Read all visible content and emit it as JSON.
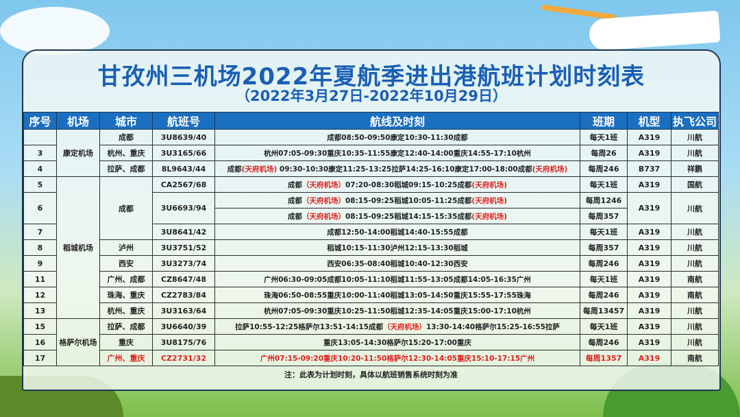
{
  "title": "甘孜州三机场2022年夏航季进出港航班计划时刻表",
  "subtitle": "（2022年3月27日-2022年10月29日）",
  "headers": [
    "序号",
    "机场",
    "城市",
    "航班号",
    "航线及时刻",
    "班期",
    "机型",
    "执飞公司"
  ],
  "airports": [
    {
      "name": "康定机场",
      "cities": [
        {
          "city": "成都",
          "flights": [
            {
              "no": "",
              "flight": "3U8639/40",
              "aircraft": "A319",
              "airline": "川航",
              "lines": [
                {
                  "route": [
                    {
                      "t": "成都08:50-09:50康定10:30-11:30成都"
                    }
                  ],
                  "schedule": "每天1班"
                }
              ]
            }
          ]
        },
        {
          "city": "杭州、重庆",
          "flights": [
            {
              "no": "3",
              "flight": "3U3165/66",
              "aircraft": "A319",
              "airline": "川航",
              "lines": [
                {
                  "route": [
                    {
                      "t": "杭州07:05-09:30重庆10:35-11:55康定12:40-14:00重庆14:55-17:10杭州"
                    }
                  ],
                  "schedule": "每周26"
                }
              ]
            }
          ]
        },
        {
          "city": "拉萨、成都",
          "flights": [
            {
              "no": "4",
              "flight": "8L9643/44",
              "aircraft": "B737",
              "airline": "祥鹏",
              "lines": [
                {
                  "route": [
                    {
                      "t": "成都"
                    },
                    {
                      "t": "(天府机场)",
                      "red": true
                    },
                    {
                      "t": " 09:30-10:30康定11:25-13:25拉萨14:25-16:10康定17:00-18:00成都"
                    },
                    {
                      "t": "(天府机场)",
                      "red": true
                    }
                  ],
                  "schedule": "每周246"
                }
              ]
            }
          ]
        }
      ]
    },
    {
      "name": "稻城机场",
      "cities": [
        {
          "city": "成都",
          "flights": [
            {
              "no": "5",
              "flight": "CA2567/68",
              "aircraft": "A319",
              "airline": "国航",
              "lines": [
                {
                  "route": [
                    {
                      "t": "成都"
                    },
                    {
                      "t": "（天府机场）",
                      "red": true
                    },
                    {
                      "t": "07:20-08:30稻城09:15-10:25成都"
                    },
                    {
                      "t": "(天府机场)",
                      "red": true
                    }
                  ],
                  "schedule": "每天1班"
                }
              ]
            },
            {
              "no": "6",
              "flight": "3U6693/94",
              "aircraft": "A319",
              "airline": "川航",
              "lines": [
                {
                  "route": [
                    {
                      "t": "成都"
                    },
                    {
                      "t": "（天府机场）",
                      "red": true
                    },
                    {
                      "t": "08:15-09:25稻城10:05-11:25成都"
                    },
                    {
                      "t": "(天府机场)",
                      "red": true
                    }
                  ],
                  "schedule": "每周1246"
                },
                {
                  "route": [
                    {
                      "t": "成都"
                    },
                    {
                      "t": "（天府机场）",
                      "red": true
                    },
                    {
                      "t": "08:15-09:25稻城14:15-15:35成都"
                    },
                    {
                      "t": "(天府机场)",
                      "red": true
                    }
                  ],
                  "schedule": "每周357"
                }
              ]
            },
            {
              "no": "7",
              "flight": "3U8641/42",
              "aircraft": "A319",
              "airline": "川航",
              "lines": [
                {
                  "route": [
                    {
                      "t": "成都12:50-14:00稻城14:40-15:55成都"
                    }
                  ],
                  "schedule": "每天1班"
                }
              ]
            }
          ]
        },
        {
          "city": "泸州",
          "flights": [
            {
              "no": "8",
              "flight": "3U3751/52",
              "aircraft": "A319",
              "airline": "川航",
              "lines": [
                {
                  "route": [
                    {
                      "t": "稻城10:15-11:30泸州12:15-13:30稻城"
                    }
                  ],
                  "schedule": "每周357"
                }
              ]
            }
          ]
        },
        {
          "city": "西安",
          "flights": [
            {
              "no": "9",
              "flight": "3U3273/74",
              "aircraft": "A319",
              "airline": "川航",
              "lines": [
                {
                  "route": [
                    {
                      "t": "西安06:35-08:40稻城10:40-12:30西安"
                    }
                  ],
                  "schedule": "每周246"
                }
              ]
            }
          ]
        },
        {
          "city": "广州、成都",
          "flights": [
            {
              "no": "11",
              "flight": "CZ8647/48",
              "aircraft": "A319",
              "airline": "南航",
              "lines": [
                {
                  "route": [
                    {
                      "t": "广州06:30-09:05成都10:05-11:10稻城11:55-13:05成都14:05-16:35广州"
                    }
                  ],
                  "schedule": "每天1班"
                }
              ]
            }
          ]
        },
        {
          "city": "珠海、重庆",
          "flights": [
            {
              "no": "12",
              "flight": "CZ2783/84",
              "aircraft": "A319",
              "airline": "南航",
              "lines": [
                {
                  "route": [
                    {
                      "t": "珠海06:50-08:55重庆10:00-11:40稻城13:05-14:50重庆15:55-17:55珠海"
                    }
                  ],
                  "schedule": "每周246"
                }
              ]
            }
          ]
        },
        {
          "city": "杭州、重庆",
          "flights": [
            {
              "no": "13",
              "flight": "3U3163/64",
              "aircraft": "A319",
              "airline": "川航",
              "lines": [
                {
                  "route": [
                    {
                      "t": "杭州07:05-09:30重庆10:25-11:50稻城12:35-14:05重庆15:00-17:10杭州"
                    }
                  ],
                  "schedule": "每周13457"
                }
              ]
            }
          ]
        }
      ]
    },
    {
      "name": "格萨尔机场",
      "cities": [
        {
          "city": "拉萨、成都",
          "flights": [
            {
              "no": "15",
              "flight": "3U6640/39",
              "aircraft": "A319",
              "airline": "川航",
              "lines": [
                {
                  "route": [
                    {
                      "t": "拉萨10:55-12:25格萨尔13:51-14:15成都"
                    },
                    {
                      "t": "（天府机场）",
                      "red": true
                    },
                    {
                      "t": "13:30-14:40格萨尔15:25-16:55拉萨"
                    }
                  ],
                  "schedule": "每天1班"
                }
              ]
            }
          ]
        },
        {
          "city": "重庆",
          "flights": [
            {
              "no": "16",
              "flight": "3U8175/76",
              "aircraft": "A319",
              "airline": "川航",
              "lines": [
                {
                  "route": [
                    {
                      "t": "重庆13:05-14:30格萨尔15:20-17:00重庆"
                    }
                  ],
                  "schedule": "每周246"
                }
              ]
            }
          ]
        },
        {
          "city": "广州、重庆",
          "red": true,
          "flights": [
            {
              "no": "17",
              "flight": "CZ2731/32",
              "aircraft": "A319",
              "airline": "南航",
              "red": true,
              "lines": [
                {
                  "route": [
                    {
                      "t": "广州07:15-09:20重庆10:20-11:50格萨尔12:30-14:05重庆15:10-17:15广州",
                      "red": true
                    }
                  ],
                  "schedule": "每周1357"
                }
              ]
            }
          ]
        }
      ]
    }
  ],
  "note": "注：此表为计划时刻，具体以航班销售系统时刻为准",
  "colors": {
    "title": "#1a5fb4",
    "header_bg": "#1b6fc0",
    "highlight": "#e0201c"
  }
}
